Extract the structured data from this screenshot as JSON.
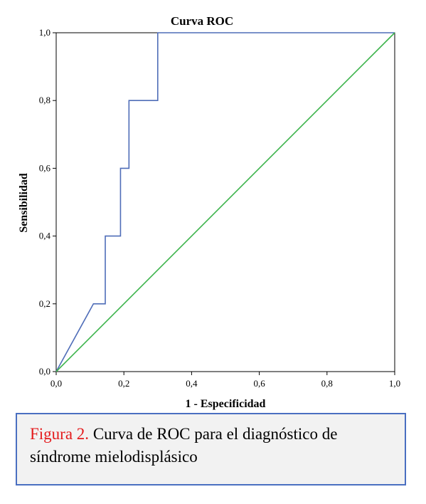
{
  "chart_data": {
    "type": "line",
    "title": "Curva ROC",
    "xlabel": "1 - Especificidad",
    "ylabel": "Sensibilidad",
    "xlim": [
      0,
      1
    ],
    "ylim": [
      0,
      1
    ],
    "xticks": [
      "0,0",
      "0,2",
      "0,4",
      "0,6",
      "0,8",
      "1,0"
    ],
    "yticks": [
      "0,0",
      "0,2",
      "0,4",
      "0,6",
      "0,8",
      "1,0"
    ],
    "grid": false,
    "series": [
      {
        "color": "#4f6db8",
        "x": [
          0.0,
          0.11,
          0.145,
          0.145,
          0.19,
          0.19,
          0.215,
          0.215,
          0.3,
          0.3,
          1.0
        ],
        "y": [
          0.0,
          0.2,
          0.2,
          0.4,
          0.4,
          0.6,
          0.6,
          0.8,
          0.8,
          1.0,
          1.0
        ]
      },
      {
        "color": "#3cb44b",
        "x": [
          0.0,
          1.0
        ],
        "y": [
          0.0,
          1.0
        ]
      }
    ]
  },
  "caption": {
    "label": "Figura 2.",
    "text": " Curva de ROC para el diagnóstico de síndrome mielodisplásico"
  }
}
